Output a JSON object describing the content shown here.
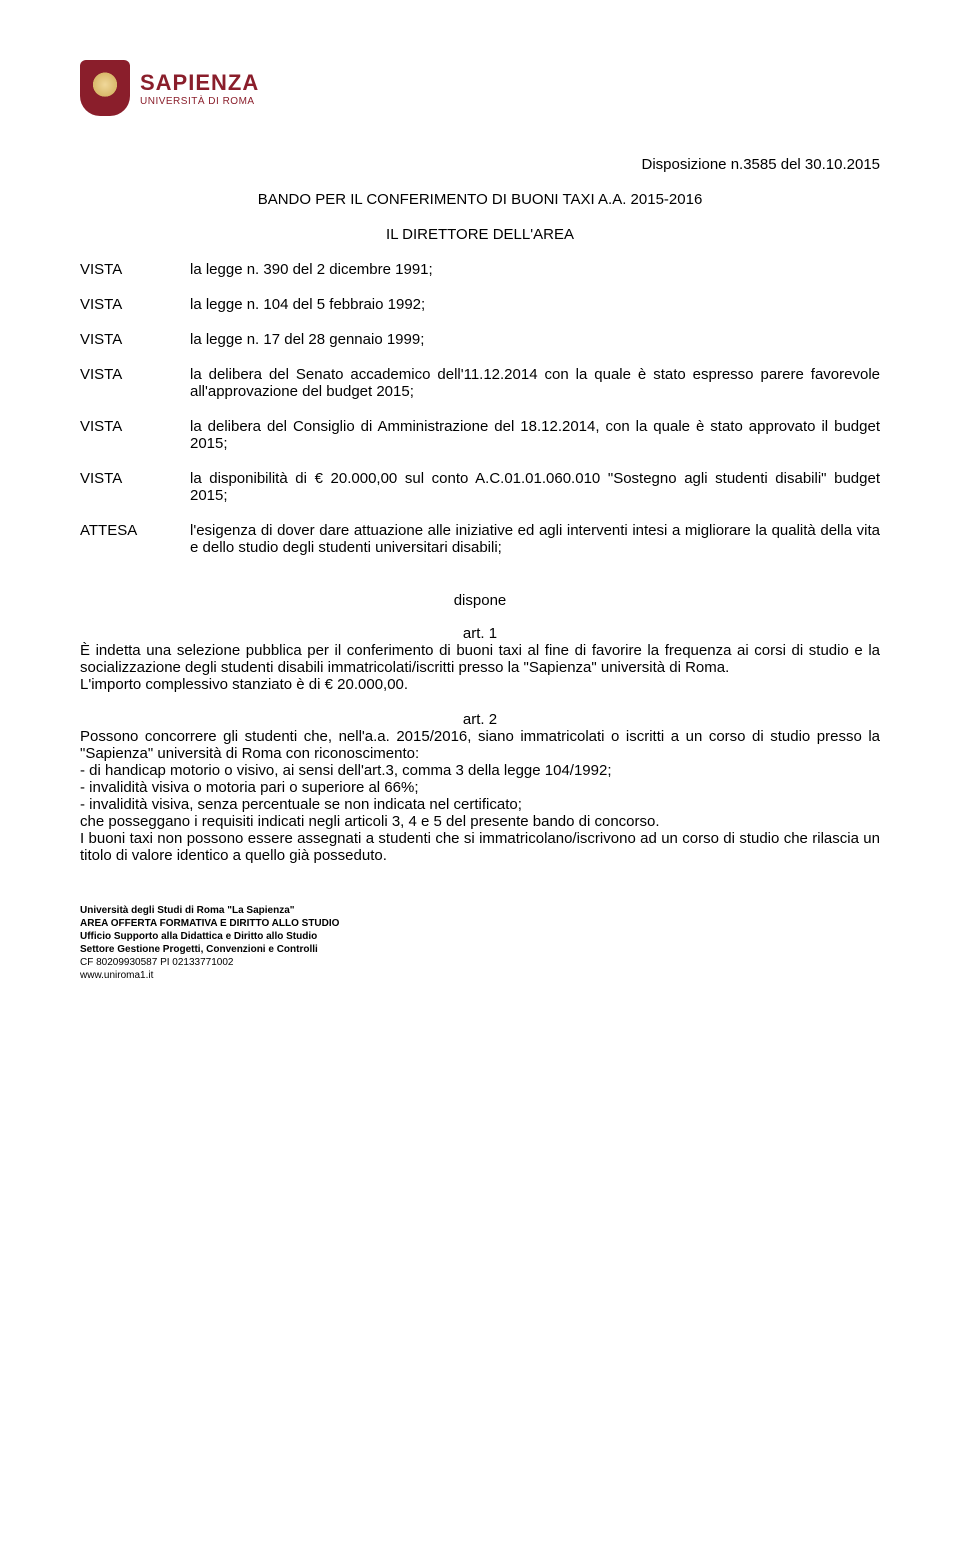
{
  "logo": {
    "name": "SAPIENZA",
    "subtitle": "UNIVERSITÀ DI ROMA"
  },
  "disposizione": "Disposizione n.3585 del 30.10.2015",
  "bando_title": "BANDO PER IL CONFERIMENTO DI BUONI TAXI A.A. 2015-2016",
  "direttore_title": "IL DIRETTORE DELL'AREA",
  "vista_rows": [
    {
      "label": "VISTA",
      "text": "la legge n. 390 del 2 dicembre 1991;"
    },
    {
      "label": "VISTA",
      "text": "la legge n. 104 del 5 febbraio 1992;"
    },
    {
      "label": "VISTA",
      "text": "la legge n. 17 del 28 gennaio 1999;"
    },
    {
      "label": "VISTA",
      "text": "la delibera del Senato accademico dell'11.12.2014 con la quale è stato espresso parere favorevole all'approvazione del budget 2015;"
    },
    {
      "label": "VISTA",
      "text": "la delibera del Consiglio di Amministrazione del 18.12.2014, con la quale è stato approvato il budget 2015;"
    },
    {
      "label": "VISTA",
      "text": "la disponibilità di € 20.000,00 sul conto A.C.01.01.060.010 \"Sostegno agli studenti disabili\" budget 2015;"
    },
    {
      "label": "ATTESA",
      "text": "l'esigenza di dover dare attuazione alle iniziative ed agli interventi intesi a migliorare la qualità della vita e dello studio degli studenti universitari disabili;"
    }
  ],
  "dispone": "dispone",
  "art1": {
    "head": "art. 1",
    "body": "È indetta una selezione pubblica per il conferimento di buoni taxi al fine di favorire la frequenza ai corsi di studio e la socializzazione degli studenti disabili immatricolati/iscritti presso la \"Sapienza\" università di Roma.\nL'importo complessivo stanziato è di € 20.000,00."
  },
  "art2": {
    "head": "art. 2",
    "body": "Possono concorrere gli studenti che, nell'a.a. 2015/2016, siano immatricolati o iscritti a un corso di studio presso la \"Sapienza\" università di Roma con riconoscimento:\n - di handicap motorio o visivo, ai sensi dell'art.3, comma 3 della legge 104/1992;\n - invalidità visiva o motoria pari o superiore al 66%;\n - invalidità visiva, senza percentuale se non indicata nel certificato;\nche posseggano i requisiti indicati negli articoli 3, 4 e 5 del presente bando di concorso.\nI buoni taxi non possono essere assegnati a studenti che si immatricolano/iscrivono ad un corso di studio che rilascia un titolo di valore identico a quello già posseduto."
  },
  "footer": {
    "l1": "Università degli Studi di Roma \"La Sapienza\"",
    "l2": "AREA OFFERTA FORMATIVA E DIRITTO ALLO STUDIO",
    "l3": "Ufficio Supporto alla Didattica e Diritto allo Studio",
    "l4": "Settore Gestione Progetti, Convenzioni e Controlli",
    "l5": "CF 80209930587 PI 02133771002",
    "l6": "www.uniroma1.it"
  }
}
